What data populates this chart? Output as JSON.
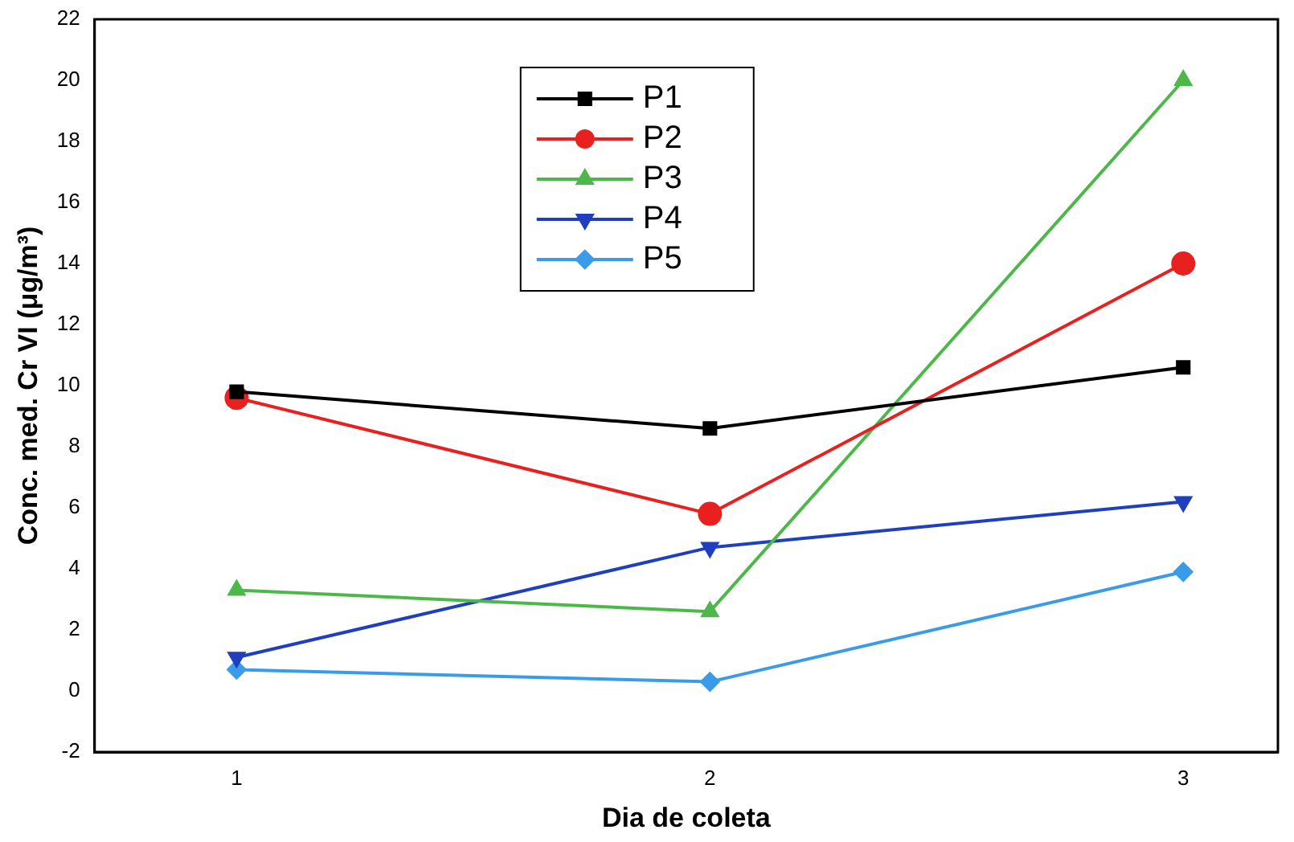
{
  "chart_data": {
    "type": "line",
    "xlabel": "Dia de coleta",
    "ylabel": "Conc. med. Cr VI (μg/m³)",
    "x": [
      1,
      2,
      3
    ],
    "series": [
      {
        "name": "P1",
        "color": "#000000",
        "marker": "square",
        "values": [
          9.8,
          8.6,
          10.6
        ]
      },
      {
        "name": "P2",
        "color": "#e8201f",
        "marker": "circle",
        "values": [
          9.6,
          5.8,
          14.0
        ]
      },
      {
        "name": "P3",
        "color": "#4db84a",
        "marker": "triangle",
        "values": [
          3.3,
          2.6,
          20.0
        ]
      },
      {
        "name": "P4",
        "color": "#1f3fbf",
        "marker": "triangle-down",
        "values": [
          1.1,
          4.7,
          6.2
        ]
      },
      {
        "name": "P5",
        "color": "#3a9be8",
        "marker": "diamond",
        "values": [
          0.7,
          0.3,
          3.9
        ]
      }
    ],
    "xlim": [
      0.7,
      3.2
    ],
    "xticks": [
      1,
      2,
      3
    ],
    "ylim": [
      -2,
      22
    ],
    "yticks": [
      -2,
      0,
      2,
      4,
      6,
      8,
      10,
      12,
      14,
      16,
      18,
      20,
      22
    ],
    "grid": false,
    "legend": "top left",
    "line_style": "solid"
  }
}
